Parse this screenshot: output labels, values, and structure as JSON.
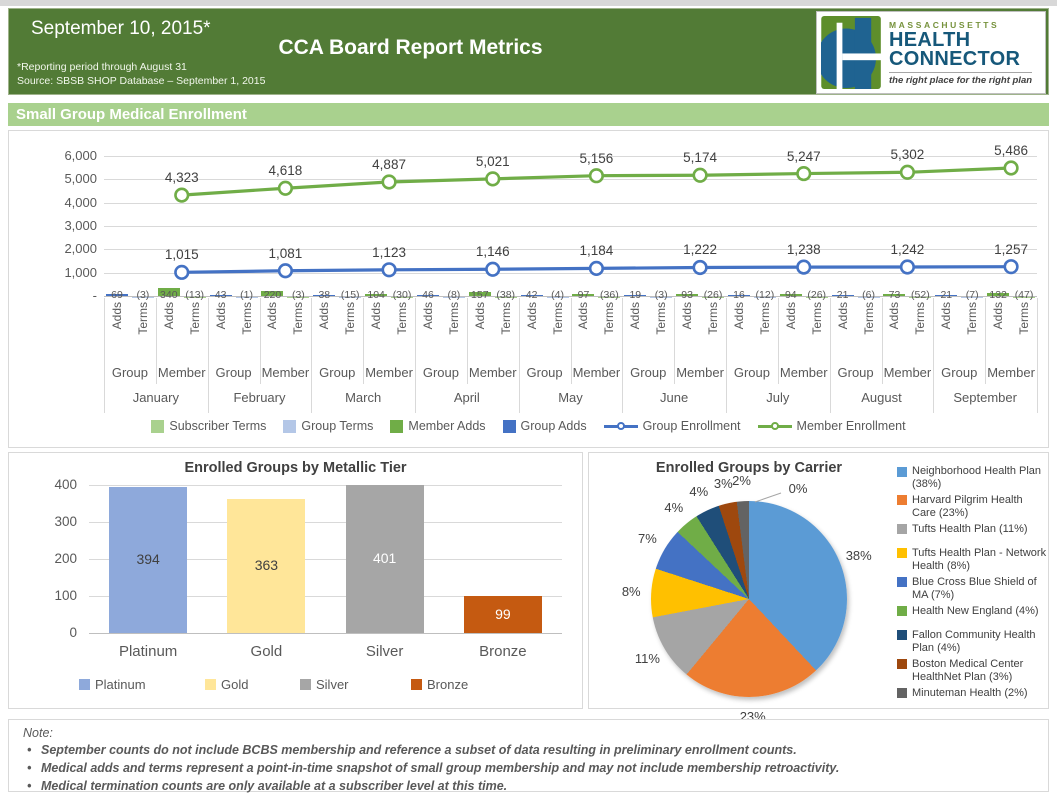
{
  "header": {
    "date_title": "September 10, 2015*",
    "title": "CCA Board Report Metrics",
    "reporting_note": "*Reporting period through August 31",
    "source_note": "Source: SBSB SHOP Database – September 1, 2015"
  },
  "logo": {
    "massachusetts": "MASSACHUSETTS",
    "health": "HEALTH",
    "connector": "CONNECTOR",
    "tagline": "the right place for the right plan"
  },
  "section_title": "Small Group Medical Enrollment",
  "chart_data": [
    {
      "id": "enrollment",
      "type": "line",
      "title": "Small Group Medical Enrollment",
      "categories": [
        "January",
        "February",
        "March",
        "April",
        "May",
        "June",
        "July",
        "August",
        "September"
      ],
      "sub_axis_level1": [
        "Adds",
        "Terms",
        "Adds",
        "Terms"
      ],
      "sub_axis_level2": [
        "Group",
        "Member"
      ],
      "series": [
        {
          "name": "Group Enrollment",
          "type": "line",
          "color": "#4472C4",
          "values": [
            1015,
            1081,
            1123,
            1146,
            1184,
            1222,
            1238,
            1242,
            1257
          ]
        },
        {
          "name": "Member Enrollment",
          "type": "line",
          "color": "#70AD47",
          "values": [
            4323,
            4618,
            4887,
            5021,
            5156,
            5174,
            5247,
            5302,
            5486
          ]
        },
        {
          "name": "Group Adds",
          "type": "bar",
          "color": "#4472C4",
          "values": [
            69,
            43,
            38,
            46,
            42,
            19,
            16,
            21,
            21
          ]
        },
        {
          "name": "Group Terms",
          "type": "bar",
          "color": "#B4C7E7",
          "values": [
            -3,
            -1,
            -15,
            -8,
            -4,
            -3,
            -12,
            -6,
            -7
          ]
        },
        {
          "name": "Member Adds",
          "type": "bar",
          "color": "#70AD47",
          "values": [
            340,
            220,
            104,
            157,
            97,
            93,
            94,
            73,
            132
          ]
        },
        {
          "name": "Subscriber Terms",
          "type": "bar",
          "color": "#A9D18E",
          "values": [
            -13,
            -3,
            -30,
            -38,
            -36,
            -26,
            -26,
            -52,
            -47
          ]
        }
      ],
      "axis_value_labels": [
        [
          "69",
          "(3)",
          "340",
          "(13)"
        ],
        [
          "43",
          "(1)",
          "220",
          "(3)"
        ],
        [
          "38",
          "(15)",
          "104",
          "(30)"
        ],
        [
          "46",
          "(8)",
          "157",
          "(38)"
        ],
        [
          "42",
          "(4)",
          "97",
          "(36)"
        ],
        [
          "19",
          "(3)",
          "93",
          "(26)"
        ],
        [
          "16",
          "(12)",
          "94",
          "(26)"
        ],
        [
          "21",
          "(6)",
          "73",
          "(52)"
        ],
        [
          "21",
          "(7)",
          "132",
          "(47)"
        ]
      ],
      "ylim": [
        0,
        6000
      ],
      "yticks": [
        "-",
        "1,000",
        "2,000",
        "3,000",
        "4,000",
        "5,000",
        "6,000"
      ],
      "grid": true,
      "legend_position": "bottom",
      "legend": [
        {
          "label": "Subscriber Terms",
          "color": "#A9D18E",
          "glyph": "square"
        },
        {
          "label": "Group Terms",
          "color": "#B4C7E7",
          "glyph": "square"
        },
        {
          "label": "Member Adds",
          "color": "#70AD47",
          "glyph": "square"
        },
        {
          "label": "Group Adds",
          "color": "#4472C4",
          "glyph": "square"
        },
        {
          "label": "Group Enrollment",
          "color": "#4472C4",
          "glyph": "line-marker"
        },
        {
          "label": "Member Enrollment",
          "color": "#70AD47",
          "glyph": "line-marker"
        }
      ]
    },
    {
      "id": "metallic-tier",
      "type": "bar",
      "title": "Enrolled Groups by Metallic Tier",
      "categories": [
        "Platinum",
        "Gold",
        "Silver",
        "Bronze"
      ],
      "values": [
        394,
        363,
        401,
        99
      ],
      "colors": [
        "#8EA9DB",
        "#FFE699",
        "#A6A6A6",
        "#C55A11"
      ],
      "value_label_colors": [
        "#404040",
        "#404040",
        "#FFFFFF",
        "#FFFFFF"
      ],
      "ylim": [
        0,
        400
      ],
      "yticks": [
        "0",
        "100",
        "200",
        "300",
        "400"
      ],
      "grid": true,
      "legend_position": "bottom",
      "legend": [
        "Platinum",
        "Gold",
        "Silver",
        "Bronze"
      ]
    },
    {
      "id": "carrier",
      "type": "pie",
      "title": "Enrolled Groups by Carrier",
      "slices": [
        {
          "label": "Neighborhood Health Plan",
          "pct": 38,
          "color": "#5B9BD5"
        },
        {
          "label": "Harvard Pilgrim Health Care",
          "pct": 23,
          "color": "#ED7D31"
        },
        {
          "label": "Tufts Health Plan",
          "pct": 11,
          "color": "#A5A5A5"
        },
        {
          "label": "Tufts Health Plan - Network Health",
          "pct": 8,
          "color": "#FFC000"
        },
        {
          "label": "Blue Cross Blue Shield of MA",
          "pct": 7,
          "color": "#4472C4"
        },
        {
          "label": "Health New England",
          "pct": 4,
          "color": "#70AD47"
        },
        {
          "label": "Fallon Community Health Plan",
          "pct": 4,
          "color": "#1F4E79"
        },
        {
          "label": "Boston Medical Center HealthNet Plan",
          "pct": 3,
          "color": "#9E480E"
        },
        {
          "label": "Minuteman Health",
          "pct": 2,
          "color": "#636363"
        },
        {
          "label": "",
          "pct": 0,
          "color": "#BFBFBF"
        }
      ],
      "legend_position": "right",
      "legend": [
        {
          "label": "Neighborhood Health Plan (38%)",
          "color": "#5B9BD5",
          "group": 0
        },
        {
          "label": "Harvard Pilgrim Health Care (23%)",
          "color": "#ED7D31",
          "group": 0
        },
        {
          "label": "Tufts Health Plan (11%)",
          "color": "#A5A5A5",
          "group": 0
        },
        {
          "label": "Tufts Health Plan - Network Health (8%)",
          "color": "#FFC000",
          "group": 1
        },
        {
          "label": "Blue Cross Blue Shield of MA (7%)",
          "color": "#4472C4",
          "group": 1
        },
        {
          "label": "Health New England (4%)",
          "color": "#70AD47",
          "group": 1
        },
        {
          "label": "Fallon Community Health Plan (4%)",
          "color": "#1F4E79",
          "group": 2
        },
        {
          "label": "Boston Medical Center HealthNet Plan (3%)",
          "color": "#9E480E",
          "group": 2
        },
        {
          "label": "Minuteman Health (2%)",
          "color": "#636363",
          "group": 2
        }
      ]
    }
  ],
  "notes": {
    "title": "Note:",
    "bullets": [
      "September counts do not include BCBS membership and reference a subset of data resulting in preliminary enrollment counts.",
      "Medical adds and terms represent a point-in-time snapshot of small group membership and may not include membership retroactivity.",
      "Medical termination counts are only available at a subscriber level at this time."
    ]
  }
}
